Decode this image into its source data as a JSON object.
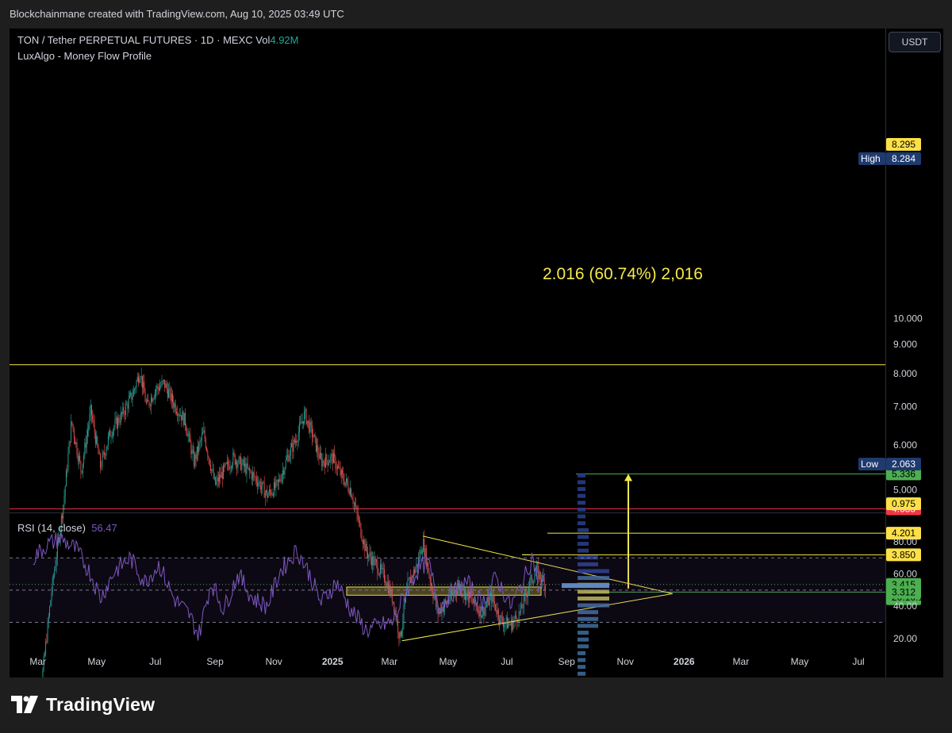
{
  "header": {
    "text": "Blockchainmane created with TradingView.com, Aug 10, 2025 03:49 UTC"
  },
  "chart": {
    "title": "TON / Tether PERPETUAL FUTURES · 1D · MEXC",
    "vol_label": "Vol",
    "vol_value": "4.92M",
    "indicator": "LuxAlgo - Money Flow Profile",
    "currency_button": "USDT",
    "measure_label": "2.016 (60.74%) 2,016"
  },
  "rsi": {
    "title": "RSI (14, close)",
    "value": "56.47"
  },
  "footer": {
    "brand": "TradingView"
  },
  "colors": {
    "bg": "#000000",
    "grid": "#1c1f26",
    "up": "#26a69a",
    "down": "#ef5350",
    "yellow": "#f5e94a",
    "red_line": "#f23645",
    "green_line": "#4caf50",
    "navy": "#1e3a8a",
    "rsi": "#7e57c2"
  },
  "chart_data": {
    "type": "candlestick",
    "price_axis": {
      "ticks": [
        "10.000",
        "9.000",
        "8.000",
        "7.000",
        "6.000",
        "5.000"
      ],
      "scale": "log"
    },
    "price_labels": [
      {
        "name": "high-price-label",
        "text": "8.295",
        "tag": "",
        "style": "yellow",
        "price": 8.295
      },
      {
        "name": "high-value-label",
        "text": "8.284",
        "tag": "High",
        "style": "navy",
        "price": 8.284
      },
      {
        "name": "target-price-label",
        "text": "5.336",
        "tag": "",
        "style": "green",
        "price": 5.336
      },
      {
        "name": "resistance-price-label",
        "text": "4.635",
        "tag": "",
        "style": "red",
        "price": 4.635
      },
      {
        "name": "level-4201-label",
        "text": "4.201",
        "tag": "",
        "style": "yellow",
        "price": 4.201
      },
      {
        "name": "level-3850-label",
        "text": "3.850",
        "tag": "",
        "style": "yellow",
        "price": 3.85
      },
      {
        "name": "current-price-label",
        "text": "3.415",
        "tag": "",
        "style": "green-current",
        "price": 3.415,
        "countdown": "20:10:12"
      },
      {
        "name": "level-3312-label",
        "text": "3.312",
        "tag": "",
        "style": "green",
        "price": 3.312
      },
      {
        "name": "low-value-label",
        "text": "2.063",
        "tag": "Low",
        "style": "navy",
        "price": 2.063
      },
      {
        "name": "bottom-price-label",
        "text": "0.975",
        "tag": "",
        "style": "yellow",
        "price": 0.975
      }
    ],
    "horizontal_lines": [
      {
        "name": "high-line",
        "price": 8.295,
        "color": "#f5e94a"
      },
      {
        "name": "resistance-line",
        "price": 4.635,
        "color": "#f23645"
      },
      {
        "name": "target-line",
        "price": 5.336,
        "color": "#4caf50"
      },
      {
        "name": "level-4201-line",
        "price": 4.201,
        "color": "#f5e94a"
      },
      {
        "name": "level-3850-line",
        "price": 3.85,
        "color": "#f5e94a"
      },
      {
        "name": "level-3312-line",
        "price": 3.312,
        "color": "#4caf50"
      }
    ],
    "x_axis": {
      "ticks": [
        "Mar",
        "May",
        "Jul",
        "Sep",
        "Nov",
        "2025",
        "Mar",
        "May",
        "Jul",
        "Sep",
        "Nov",
        "2026",
        "Mar",
        "May",
        "Jul"
      ]
    },
    "price_path": [
      [
        "2024-02-25",
        2.15
      ],
      [
        "2024-03-05",
        2.3
      ],
      [
        "2024-03-15",
        3.3
      ],
      [
        "2024-03-28",
        4.8
      ],
      [
        "2024-04-05",
        6.6
      ],
      [
        "2024-04-15",
        5.4
      ],
      [
        "2024-04-25",
        6.9
      ],
      [
        "2024-05-05",
        5.5
      ],
      [
        "2024-05-15",
        6.3
      ],
      [
        "2024-05-28",
        6.8
      ],
      [
        "2024-06-08",
        7.4
      ],
      [
        "2024-06-15",
        8.1
      ],
      [
        "2024-06-22",
        7.0
      ],
      [
        "2024-07-01",
        7.5
      ],
      [
        "2024-07-10",
        7.7
      ],
      [
        "2024-07-20",
        7.1
      ],
      [
        "2024-08-01",
        6.6
      ],
      [
        "2024-08-10",
        5.6
      ],
      [
        "2024-08-20",
        6.3
      ],
      [
        "2024-09-01",
        5.1
      ],
      [
        "2024-09-10",
        5.4
      ],
      [
        "2024-09-20",
        5.7
      ],
      [
        "2024-10-01",
        5.5
      ],
      [
        "2024-10-15",
        5.2
      ],
      [
        "2024-10-25",
        4.9
      ],
      [
        "2024-11-05",
        5.1
      ],
      [
        "2024-11-15",
        5.7
      ],
      [
        "2024-11-25",
        6.2
      ],
      [
        "2024-12-03",
        6.8
      ],
      [
        "2024-12-12",
        6.2
      ],
      [
        "2024-12-20",
        5.6
      ],
      [
        "2025-01-01",
        5.7
      ],
      [
        "2025-01-10",
        5.3
      ],
      [
        "2025-01-20",
        5.0
      ],
      [
        "2025-01-28",
        4.4
      ],
      [
        "2025-02-05",
        3.9
      ],
      [
        "2025-02-15",
        3.7
      ],
      [
        "2025-02-25",
        3.5
      ],
      [
        "2025-03-05",
        3.2
      ],
      [
        "2025-03-12",
        2.75
      ],
      [
        "2025-03-20",
        3.4
      ],
      [
        "2025-03-30",
        3.7
      ],
      [
        "2025-04-05",
        4.05
      ],
      [
        "2025-04-12",
        3.5
      ],
      [
        "2025-04-20",
        3.05
      ],
      [
        "2025-05-01",
        3.2
      ],
      [
        "2025-05-12",
        3.4
      ],
      [
        "2025-05-25",
        3.2
      ],
      [
        "2025-06-05",
        3.05
      ],
      [
        "2025-06-15",
        3.25
      ],
      [
        "2025-06-25",
        2.95
      ],
      [
        "2025-07-05",
        2.9
      ],
      [
        "2025-07-15",
        3.05
      ],
      [
        "2025-07-25",
        3.45
      ],
      [
        "2025-08-01",
        3.6
      ],
      [
        "2025-08-10",
        3.415
      ]
    ],
    "trend_lines": [
      {
        "name": "triangle-upper-line",
        "from": [
          "2025-04-05",
          4.15
        ],
        "to": [
          "2025-12-20",
          3.29
        ],
        "color": "#f5e94a"
      },
      {
        "name": "triangle-lower-line",
        "from": [
          "2025-03-14",
          2.72
        ],
        "to": [
          "2025-12-20",
          3.29
        ],
        "color": "#f5e94a"
      }
    ],
    "measure": {
      "from_price": 3.32,
      "to_price": 5.336,
      "date": "2025-10-10",
      "change": 2.016,
      "percent": 60.74
    },
    "rsi_axis": {
      "ticks": [
        "80.00",
        "60.00",
        "40.00",
        "20.00"
      ],
      "upper": 70,
      "lower": 30,
      "mid": 50
    },
    "rsi_path": [
      [
        "2024-02-25",
        70
      ],
      [
        "2024-03-10",
        78
      ],
      [
        "2024-03-25",
        82
      ],
      [
        "2024-04-10",
        75
      ],
      [
        "2024-04-25",
        60
      ],
      [
        "2024-05-05",
        45
      ],
      [
        "2024-05-20",
        62
      ],
      [
        "2024-06-05",
        70
      ],
      [
        "2024-06-20",
        55
      ],
      [
        "2024-07-05",
        66
      ],
      [
        "2024-07-20",
        45
      ],
      [
        "2024-08-05",
        35
      ],
      [
        "2024-08-15",
        22
      ],
      [
        "2024-08-28",
        55
      ],
      [
        "2024-09-10",
        38
      ],
      [
        "2024-09-25",
        60
      ],
      [
        "2024-10-10",
        45
      ],
      [
        "2024-10-25",
        40
      ],
      [
        "2024-11-08",
        62
      ],
      [
        "2024-11-25",
        75
      ],
      [
        "2024-12-08",
        60
      ],
      [
        "2024-12-20",
        42
      ],
      [
        "2025-01-05",
        55
      ],
      [
        "2025-01-20",
        38
      ],
      [
        "2025-02-05",
        25
      ],
      [
        "2025-02-20",
        28
      ],
      [
        "2025-03-05",
        30
      ],
      [
        "2025-03-15",
        45
      ],
      [
        "2025-03-30",
        62
      ],
      [
        "2025-04-10",
        68
      ],
      [
        "2025-04-22",
        40
      ],
      [
        "2025-05-05",
        48
      ],
      [
        "2025-05-20",
        55
      ],
      [
        "2025-06-05",
        42
      ],
      [
        "2025-06-20",
        58
      ],
      [
        "2025-07-05",
        40
      ],
      [
        "2025-07-18",
        55
      ],
      [
        "2025-07-28",
        72
      ],
      [
        "2025-08-03",
        50
      ],
      [
        "2025-08-10",
        56.47
      ]
    ]
  }
}
